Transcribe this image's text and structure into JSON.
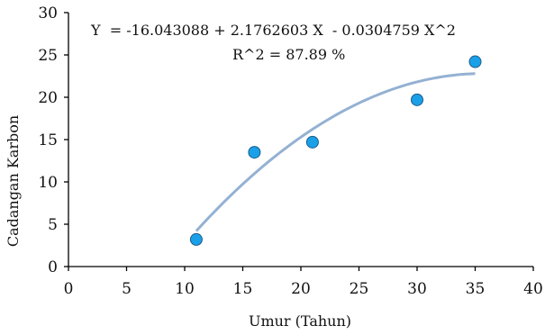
{
  "chart_data": {
    "type": "scatter",
    "title": "",
    "xlabel": "Umur (Tahun)",
    "ylabel": "Cadangan Karbon",
    "xlim": [
      0,
      40
    ],
    "ylim": [
      0,
      30
    ],
    "x_ticks": [
      0,
      5,
      10,
      15,
      20,
      25,
      30,
      35,
      40
    ],
    "y_ticks": [
      0,
      5,
      10,
      15,
      20,
      25,
      30
    ],
    "x_tick_labels": [
      "0",
      "5",
      "10",
      "15",
      "20",
      "25",
      "30",
      "35",
      "40"
    ],
    "y_tick_labels": [
      "0",
      "5",
      "10",
      "15",
      "20",
      "25",
      "30"
    ],
    "grid": false,
    "legend": "none",
    "series": [
      {
        "type": "scatter",
        "x": [
          11,
          16,
          21,
          30,
          35
        ],
        "y": [
          3.2,
          13.5,
          14.7,
          19.7,
          24.2
        ],
        "color": "#1aa0e8"
      }
    ],
    "trendline": {
      "type": "polynomial",
      "coefficients": [
        -16.043088,
        2.1762603,
        -0.0304759
      ],
      "x_range": [
        11,
        35
      ],
      "color": "#94b1d3"
    },
    "annotations": {
      "equation": "Y  = -16.043088 + 2.1762603 X  - 0.0304759 X^2",
      "r_squared": "R^2 = 87.89 %"
    }
  }
}
